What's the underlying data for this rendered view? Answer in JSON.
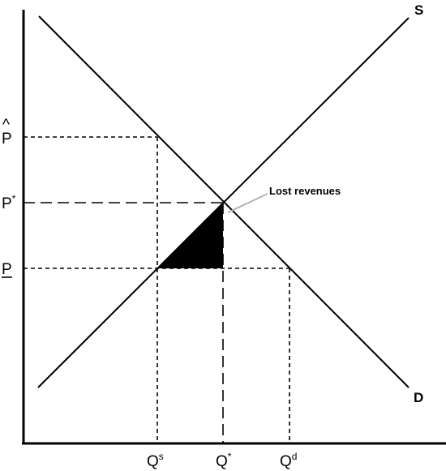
{
  "diagram": {
    "curves": {
      "supply_label": "S",
      "demand_label": "D"
    },
    "price_labels": {
      "p_hat": {
        "base": "P",
        "mark": "^"
      },
      "p_star": {
        "base": "P",
        "sup": "*"
      },
      "p_floor": {
        "base": "P"
      }
    },
    "quantity_labels": {
      "q_supplied": {
        "base": "Q",
        "sup": "s"
      },
      "q_star": {
        "base": "Q",
        "sup": "*"
      },
      "q_demanded": {
        "base": "Q",
        "sup": "d"
      }
    },
    "annotation": "Lost revenues",
    "colors": {
      "lines": "#000000",
      "shaded_area": "#000000",
      "pointer": "#b3b3b3",
      "background": "#ffffff"
    }
  }
}
